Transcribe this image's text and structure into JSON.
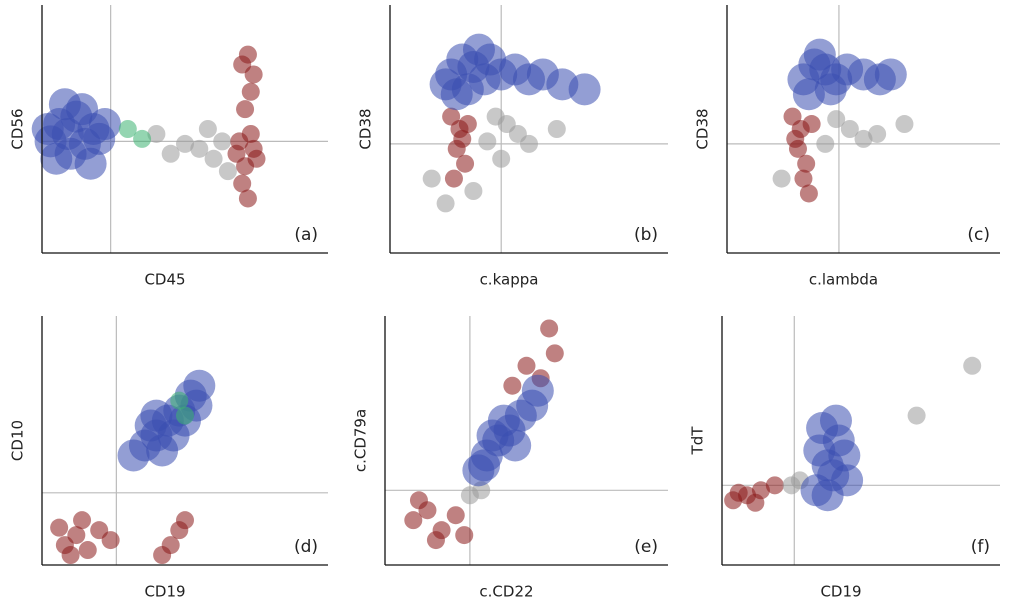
{
  "chart_data": [
    {
      "type": "scatter",
      "xlabel": "CD45",
      "ylabel": "CD56",
      "panel_label": "(a)",
      "xlim": [
        0,
        100
      ],
      "ylim": [
        0,
        100
      ],
      "gate_x": 24,
      "gate_y": 45,
      "series": [
        {
          "color": "#3a4fb0",
          "x": [
            3,
            6,
            9,
            12,
            15,
            18,
            5,
            10,
            14,
            20,
            8,
            17,
            2,
            22
          ],
          "y": [
            45,
            52,
            48,
            55,
            44,
            50,
            38,
            40,
            58,
            46,
            60,
            36,
            50,
            52
          ]
        },
        {
          "color": "#9a9a9a",
          "x": [
            55,
            60,
            63,
            58,
            50,
            45,
            65,
            40
          ],
          "y": [
            42,
            38,
            45,
            50,
            44,
            40,
            33,
            48
          ]
        },
        {
          "color": "#3cb371",
          "x": [
            30,
            35
          ],
          "y": [
            50,
            46
          ]
        },
        {
          "color": "#8b1a1a",
          "x": [
            68,
            71,
            74,
            70,
            73,
            69,
            72,
            75,
            70,
            74,
            72,
            73,
            71
          ],
          "y": [
            40,
            35,
            42,
            28,
            48,
            45,
            22,
            38,
            76,
            72,
            80,
            65,
            58
          ]
        }
      ]
    },
    {
      "type": "scatter",
      "xlabel": "c.kappa",
      "ylabel": "CD38",
      "panel_label": "(b)",
      "xlim": [
        0,
        100
      ],
      "ylim": [
        0,
        100
      ],
      "gate_x": 40,
      "gate_y": 44,
      "series": [
        {
          "color": "#9a9a9a",
          "x": [
            38,
            42,
            46,
            35,
            50,
            30,
            20,
            15,
            60,
            40
          ],
          "y": [
            55,
            52,
            48,
            45,
            44,
            25,
            20,
            30,
            50,
            38
          ]
        },
        {
          "color": "#8b1a1a",
          "x": [
            22,
            25,
            24,
            27,
            23,
            26,
            28
          ],
          "y": [
            55,
            50,
            42,
            36,
            30,
            46,
            52
          ]
        },
        {
          "color": "#3a4fb0",
          "x": [
            22,
            26,
            30,
            34,
            28,
            24,
            36,
            40,
            45,
            50,
            55,
            62,
            70,
            32,
            20
          ],
          "y": [
            72,
            78,
            75,
            70,
            66,
            64,
            78,
            72,
            74,
            70,
            72,
            68,
            66,
            82,
            68
          ]
        }
      ]
    },
    {
      "type": "scatter",
      "xlabel": "c.lambda",
      "ylabel": "CD38",
      "panel_label": "(c)",
      "xlim": [
        0,
        100
      ],
      "ylim": [
        0,
        100
      ],
      "gate_x": 41,
      "gate_y": 44,
      "series": [
        {
          "color": "#9a9a9a",
          "x": [
            40,
            45,
            50,
            36,
            55,
            20,
            65
          ],
          "y": [
            54,
            50,
            46,
            44,
            48,
            30,
            52
          ]
        },
        {
          "color": "#8b1a1a",
          "x": [
            24,
            27,
            26,
            29,
            28,
            25,
            31,
            30
          ],
          "y": [
            55,
            50,
            42,
            36,
            30,
            46,
            52,
            24
          ]
        },
        {
          "color": "#3a4fb0",
          "x": [
            28,
            32,
            36,
            40,
            34,
            30,
            44,
            50,
            56,
            60,
            38
          ],
          "y": [
            70,
            76,
            74,
            70,
            80,
            64,
            74,
            72,
            70,
            72,
            66
          ]
        }
      ]
    },
    {
      "type": "scatter",
      "xlabel": "CD19",
      "ylabel": "CD10",
      "panel_label": "(d)",
      "xlim": [
        0,
        100
      ],
      "ylim": [
        0,
        100
      ],
      "gate_x": 26,
      "gate_y": 29,
      "series": [
        {
          "color": "#8b1a1a",
          "x": [
            8,
            12,
            16,
            20,
            6,
            24,
            14,
            10,
            45,
            48,
            42,
            50
          ],
          "y": [
            8,
            12,
            6,
            14,
            15,
            10,
            18,
            4,
            8,
            14,
            4,
            18
          ]
        },
        {
          "color": "#3a4fb0",
          "x": [
            32,
            36,
            40,
            44,
            48,
            52,
            55,
            38,
            46,
            50,
            42,
            54,
            40
          ],
          "y": [
            44,
            48,
            52,
            58,
            62,
            68,
            72,
            56,
            52,
            58,
            46,
            64,
            60
          ]
        },
        {
          "color": "#3cb371",
          "x": [
            48,
            50
          ],
          "y": [
            66,
            60
          ]
        }
      ]
    },
    {
      "type": "scatter",
      "xlabel": "c.CD22",
      "ylabel": "c.CD79a",
      "panel_label": "(e)",
      "xlim": [
        0,
        100
      ],
      "ylim": [
        0,
        100
      ],
      "gate_x": 30,
      "gate_y": 30,
      "series": [
        {
          "color": "#8b1a1a",
          "x": [
            10,
            15,
            20,
            25,
            28,
            18,
            12,
            55,
            60,
            58,
            50,
            45
          ],
          "y": [
            18,
            22,
            14,
            20,
            12,
            10,
            26,
            75,
            85,
            95,
            80,
            72
          ]
        },
        {
          "color": "#9a9a9a",
          "x": [
            30,
            34
          ],
          "y": [
            28,
            30
          ]
        },
        {
          "color": "#3a4fb0",
          "x": [
            33,
            36,
            40,
            44,
            48,
            52,
            38,
            46,
            42,
            54,
            35
          ],
          "y": [
            38,
            44,
            50,
            54,
            60,
            64,
            52,
            48,
            58,
            70,
            40
          ]
        }
      ]
    },
    {
      "type": "scatter",
      "xlabel": "CD19",
      "ylabel": "TdT",
      "panel_label": "(f)",
      "xlim": [
        0,
        100
      ],
      "ylim": [
        0,
        100
      ],
      "gate_x": 26,
      "gate_y": 32,
      "series": [
        {
          "color": "#8b1a1a",
          "x": [
            4,
            9,
            14,
            19,
            12,
            6
          ],
          "y": [
            26,
            28,
            30,
            32,
            25,
            29
          ]
        },
        {
          "color": "#9a9a9a",
          "x": [
            25,
            28,
            70,
            90
          ],
          "y": [
            32,
            34,
            60,
            80
          ]
        },
        {
          "color": "#3a4fb0",
          "x": [
            34,
            38,
            42,
            36,
            40,
            44,
            35,
            41,
            38,
            45
          ],
          "y": [
            30,
            40,
            50,
            55,
            36,
            44,
            46,
            58,
            28,
            34
          ]
        }
      ]
    }
  ]
}
